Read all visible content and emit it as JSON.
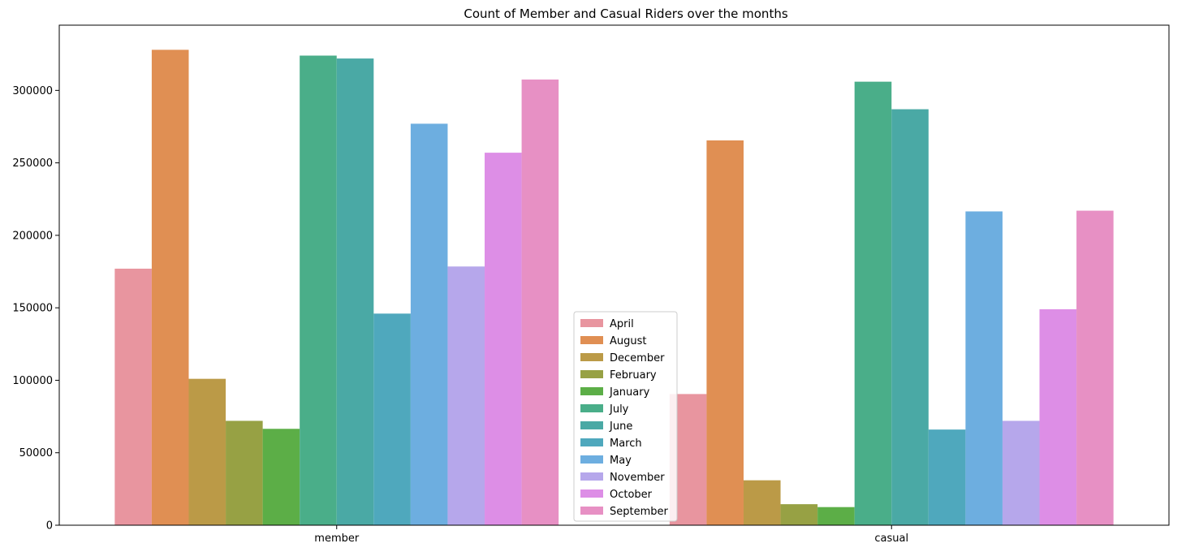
{
  "chart_data": {
    "type": "bar",
    "title": "Count of Member and Casual Riders over the months",
    "xlabel": "",
    "ylabel": "",
    "categories": [
      "member",
      "casual"
    ],
    "ylim": [
      0,
      345000
    ],
    "yticks": [
      0,
      50000,
      100000,
      150000,
      200000,
      250000,
      300000
    ],
    "ytick_labels": [
      "0",
      "50000",
      "100000",
      "150000",
      "200000",
      "250000",
      "300000"
    ],
    "grid": false,
    "legend_position": "center",
    "series": [
      {
        "name": "April",
        "color": "#e8959f",
        "values": [
          177000,
          90500
        ]
      },
      {
        "name": "August",
        "color": "#e08f53",
        "values": [
          328000,
          265500
        ]
      },
      {
        "name": "December",
        "color": "#bb9a47",
        "values": [
          101000,
          31000
        ]
      },
      {
        "name": "February",
        "color": "#97a144",
        "values": [
          72000,
          14500
        ]
      },
      {
        "name": "January",
        "color": "#5cae47",
        "values": [
          66500,
          12500
        ]
      },
      {
        "name": "July",
        "color": "#4aae89",
        "values": [
          324000,
          306000
        ]
      },
      {
        "name": "June",
        "color": "#4aa9a5",
        "values": [
          322000,
          287000
        ]
      },
      {
        "name": "March",
        "color": "#4fa8bd",
        "values": [
          146000,
          66000
        ]
      },
      {
        "name": "May",
        "color": "#6daee0",
        "values": [
          277000,
          216500
        ]
      },
      {
        "name": "November",
        "color": "#b6a7eb",
        "values": [
          178500,
          72000
        ]
      },
      {
        "name": "October",
        "color": "#dd8ee6",
        "values": [
          257000,
          149000
        ]
      },
      {
        "name": "September",
        "color": "#e790c4",
        "values": [
          307500,
          217000
        ]
      }
    ]
  }
}
